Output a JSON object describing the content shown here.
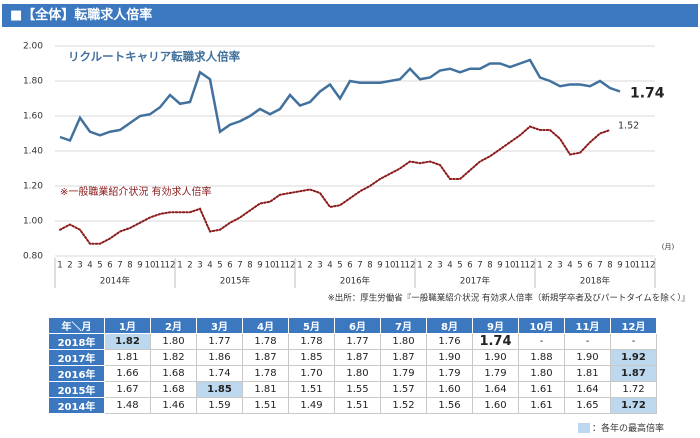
{
  "header": {
    "title": "■【全体】転職求人倍率"
  },
  "chart_data": {
    "type": "line",
    "categories": [
      "1",
      "2",
      "3",
      "4",
      "5",
      "6",
      "7",
      "8",
      "9",
      "10",
      "11",
      "12",
      "1",
      "2",
      "3",
      "4",
      "5",
      "6",
      "7",
      "8",
      "9",
      "10",
      "11",
      "12",
      "1",
      "2",
      "3",
      "4",
      "5",
      "6",
      "7",
      "8",
      "9",
      "10",
      "11",
      "12",
      "1",
      "2",
      "3",
      "4",
      "5",
      "6",
      "7",
      "8",
      "9",
      "10",
      "11",
      "12",
      "1",
      "2",
      "3",
      "4",
      "5",
      "6",
      "7",
      "8",
      "9",
      "10",
      "11",
      "12"
    ],
    "year_labels": [
      "2014年",
      "2015年",
      "2016年",
      "2017年",
      "2018年"
    ],
    "x_unit": "(月)",
    "series": [
      {
        "name": "リクルートキャリア転職求人倍率",
        "color": "#41719c",
        "dash": false,
        "values": [
          1.48,
          1.46,
          1.59,
          1.51,
          1.49,
          1.51,
          1.52,
          1.56,
          1.6,
          1.61,
          1.65,
          1.72,
          1.67,
          1.68,
          1.85,
          1.81,
          1.51,
          1.55,
          1.57,
          1.6,
          1.64,
          1.61,
          1.64,
          1.72,
          1.66,
          1.68,
          1.74,
          1.78,
          1.7,
          1.8,
          1.79,
          1.79,
          1.79,
          1.8,
          1.81,
          1.87,
          1.81,
          1.82,
          1.86,
          1.87,
          1.85,
          1.87,
          1.87,
          1.9,
          1.9,
          1.88,
          1.9,
          1.92,
          1.82,
          1.8,
          1.77,
          1.78,
          1.78,
          1.77,
          1.8,
          1.76,
          1.74,
          null,
          null,
          null
        ]
      },
      {
        "name": "※一般職業紹介状況 有効求人倍率",
        "color": "#8b1a1a",
        "dash": true,
        "values": [
          0.95,
          0.98,
          0.95,
          0.87,
          0.87,
          0.9,
          0.94,
          0.96,
          0.99,
          1.02,
          1.04,
          1.05,
          1.05,
          1.05,
          1.07,
          0.94,
          0.95,
          0.99,
          1.02,
          1.06,
          1.1,
          1.11,
          1.15,
          1.16,
          1.17,
          1.18,
          1.16,
          1.08,
          1.09,
          1.13,
          1.17,
          1.2,
          1.24,
          1.27,
          1.3,
          1.34,
          1.33,
          1.34,
          1.32,
          1.24,
          1.24,
          1.29,
          1.34,
          1.37,
          1.41,
          1.45,
          1.49,
          1.54,
          1.52,
          1.52,
          1.47,
          1.38,
          1.39,
          1.45,
          1.5,
          1.52,
          null,
          null,
          null,
          null
        ]
      }
    ],
    "ylim": [
      0.8,
      2.0
    ],
    "yticks": [
      {
        "value": 0.8,
        "label": "0.80"
      },
      {
        "value": 1.0,
        "label": "1.00"
      },
      {
        "value": 1.2,
        "label": "1.20"
      },
      {
        "value": 1.4,
        "label": "1.40"
      },
      {
        "value": 1.6,
        "label": "1.60"
      },
      {
        "value": 1.8,
        "label": "1.80"
      },
      {
        "value": 2.0,
        "label": "2.00"
      }
    ],
    "grid": true,
    "source": "※出所：厚生労働省『一般職業紹介状況 有効求人倍率（新規学卒者及びパートタイムを除く）』"
  },
  "table": {
    "header": [
      "年＼月",
      "1月",
      "2月",
      "3月",
      "4月",
      "5月",
      "6月",
      "7月",
      "8月",
      "9月",
      "10月",
      "11月",
      "12月"
    ],
    "rows": [
      [
        "2018年",
        "1.82",
        "1.80",
        "1.77",
        "1.78",
        "1.78",
        "1.77",
        "1.80",
        "1.76",
        "1.74",
        "-",
        "-",
        "-"
      ],
      [
        "2017年",
        "1.81",
        "1.82",
        "1.86",
        "1.87",
        "1.85",
        "1.87",
        "1.87",
        "1.90",
        "1.90",
        "1.88",
        "1.90",
        "1.92"
      ],
      [
        "2016年",
        "1.66",
        "1.68",
        "1.74",
        "1.78",
        "1.70",
        "1.80",
        "1.79",
        "1.79",
        "1.79",
        "1.80",
        "1.81",
        "1.87"
      ],
      [
        "2015年",
        "1.67",
        "1.68",
        "1.85",
        "1.81",
        "1.51",
        "1.55",
        "1.57",
        "1.60",
        "1.64",
        "1.61",
        "1.64",
        "1.72"
      ],
      [
        "2014年",
        "1.48",
        "1.46",
        "1.59",
        "1.51",
        "1.49",
        "1.51",
        "1.52",
        "1.56",
        "1.60",
        "1.61",
        "1.65",
        "1.72"
      ]
    ],
    "highlight": [
      [
        0,
        1
      ],
      [
        1,
        12
      ],
      [
        2,
        12
      ],
      [
        3,
        3
      ],
      [
        4,
        12
      ]
    ],
    "emphasis": [
      [
        0,
        9
      ]
    ],
    "legend": "：各年の最高倍率"
  }
}
